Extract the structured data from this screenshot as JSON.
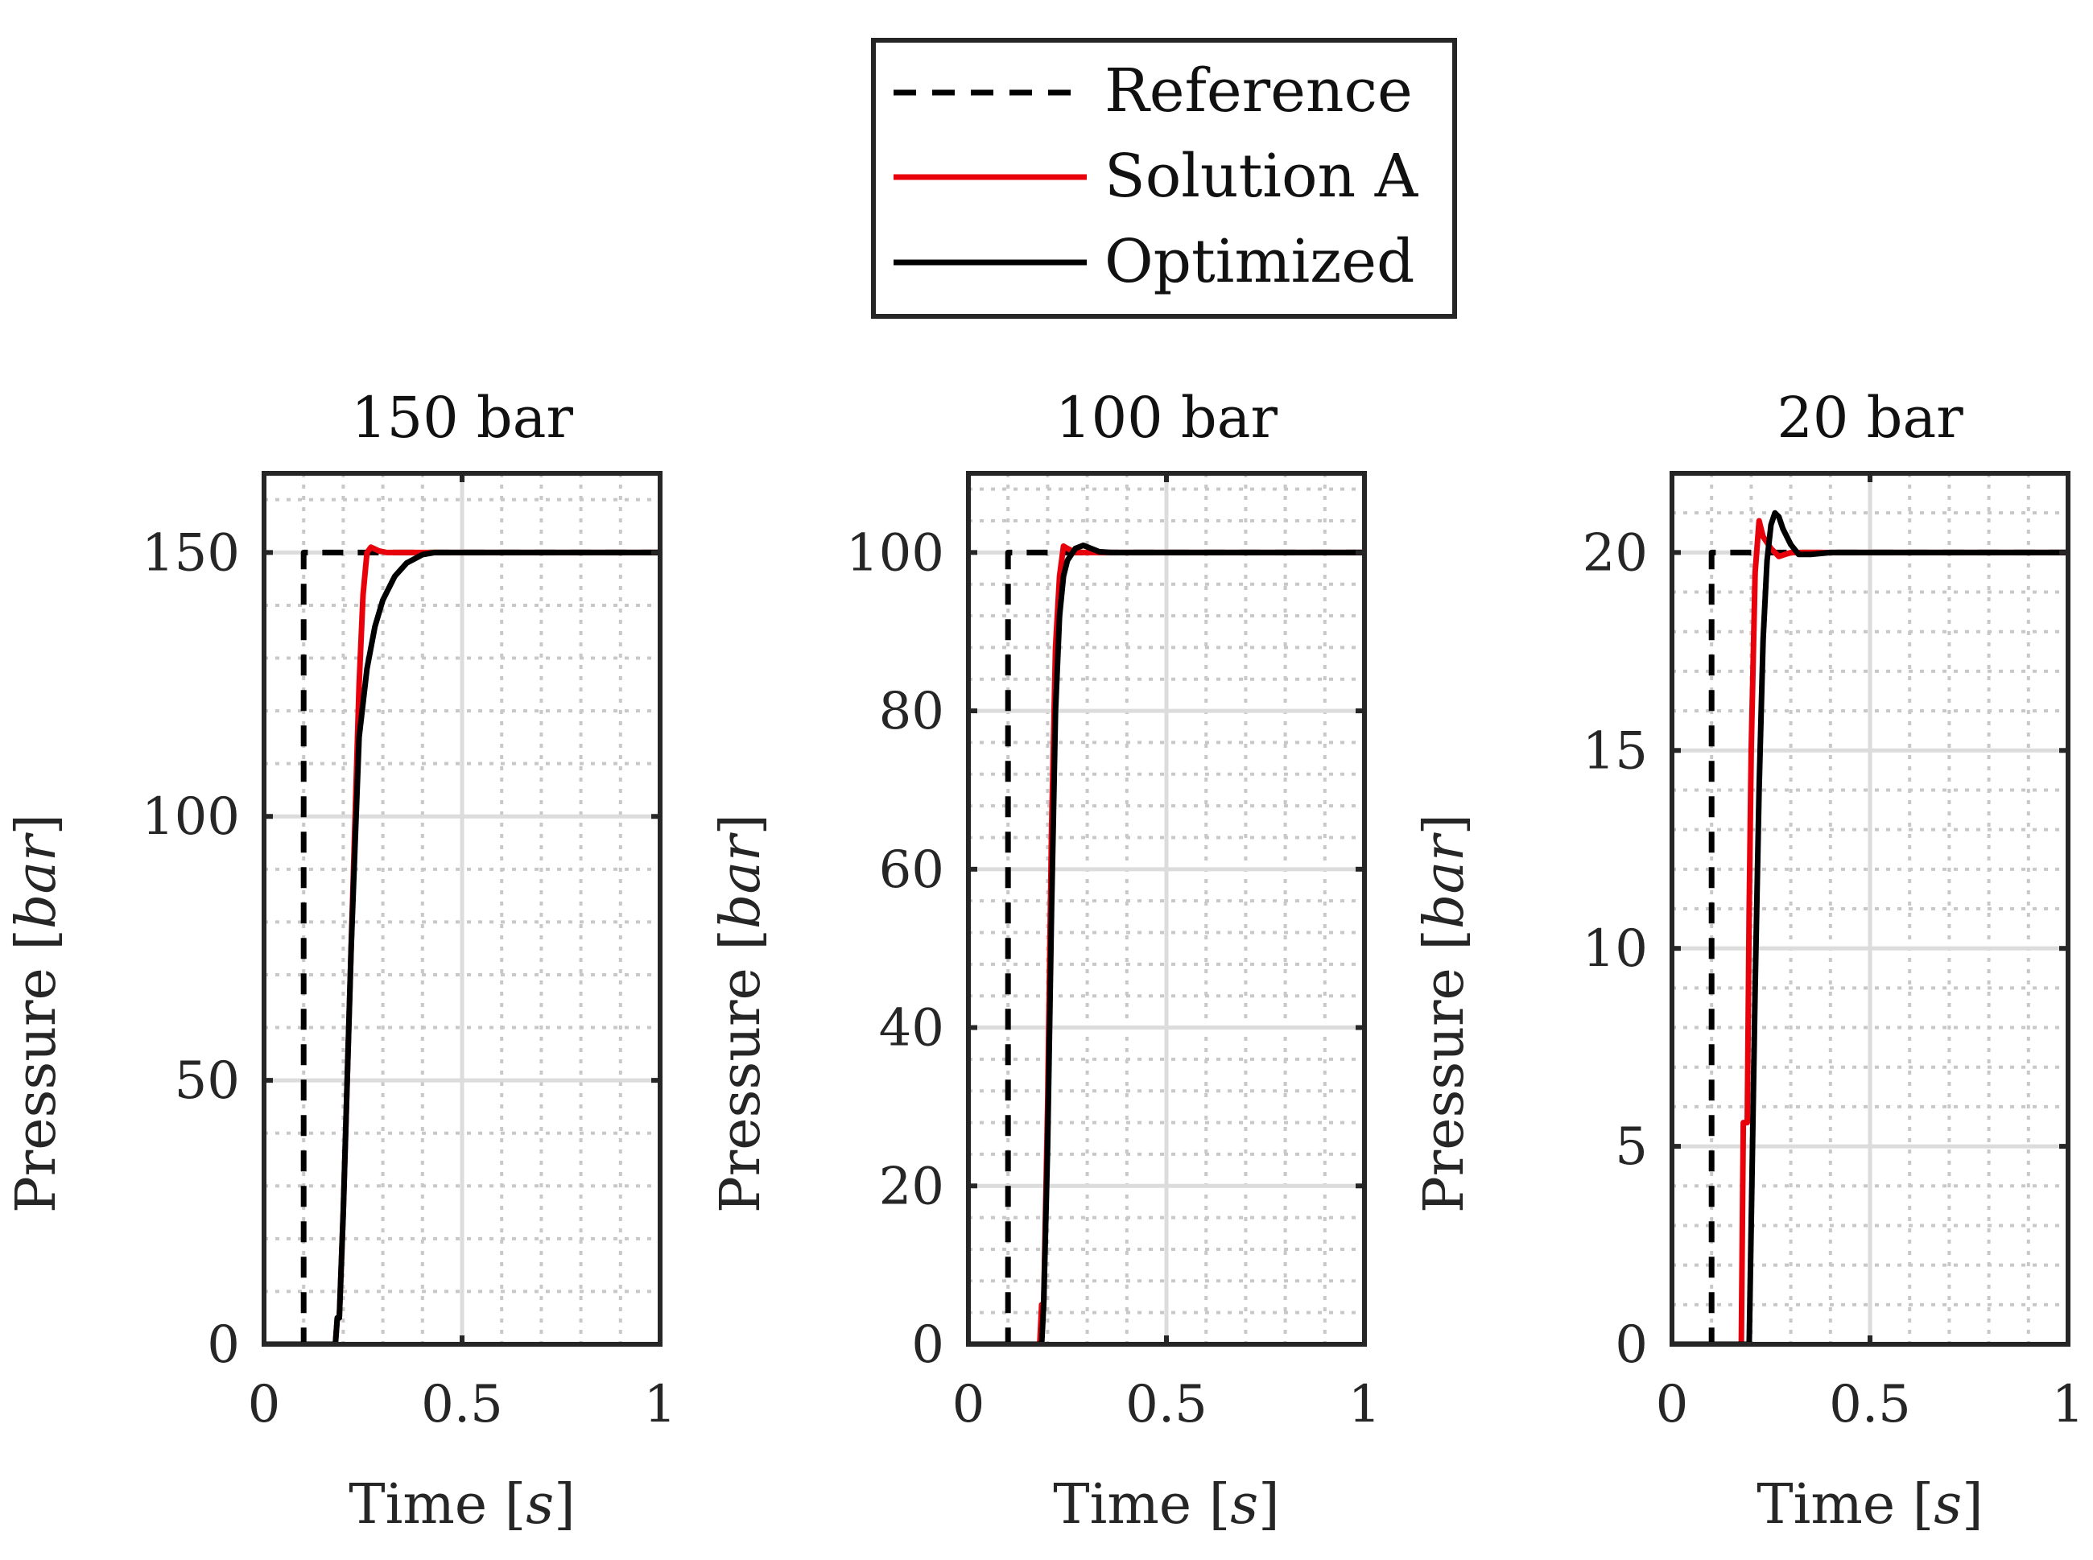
{
  "legend": {
    "entries": [
      {
        "label": "Reference",
        "color": "#000000",
        "style": "dashed"
      },
      {
        "label": "Solution A",
        "color": "#e8000b",
        "style": "solid"
      },
      {
        "label": "Optimized",
        "color": "#000000",
        "style": "solid"
      }
    ]
  },
  "chart_data": [
    {
      "type": "line",
      "title": "150 bar",
      "xlabel_text": "Time ",
      "xlabel_unit": "s",
      "ylabel_text": "Pressure ",
      "ylabel_unit": "bar",
      "xlim": [
        0,
        1
      ],
      "ylim": [
        0,
        165
      ],
      "xticks": [
        0,
        0.5,
        1
      ],
      "xtick_labels": [
        "0",
        "0.5",
        "1"
      ],
      "yticks": [
        0,
        50,
        100,
        150
      ],
      "ytick_labels": [
        "0",
        "50",
        "100",
        "150"
      ],
      "minor_xticks": [
        0.1,
        0.2,
        0.3,
        0.4,
        0.6,
        0.7,
        0.8,
        0.9
      ],
      "minor_yticks": [
        10,
        20,
        30,
        40,
        60,
        70,
        80,
        90,
        110,
        120,
        130,
        140,
        160
      ],
      "grid": true,
      "series": [
        {
          "name": "Reference",
          "x": [
            0,
            0.1,
            0.1,
            1
          ],
          "y": [
            0,
            0,
            150,
            150
          ]
        },
        {
          "name": "Solution A",
          "x": [
            0,
            0.18,
            0.185,
            0.19,
            0.2,
            0.22,
            0.24,
            0.25,
            0.26,
            0.27,
            0.29,
            0.31,
            0.35,
            1
          ],
          "y": [
            0,
            0,
            5,
            5,
            25,
            75,
            125,
            142,
            150,
            151,
            150.3,
            150,
            150,
            150
          ]
        },
        {
          "name": "Optimized",
          "x": [
            0,
            0.18,
            0.185,
            0.19,
            0.2,
            0.22,
            0.24,
            0.26,
            0.28,
            0.3,
            0.33,
            0.36,
            0.4,
            0.43,
            1
          ],
          "y": [
            0,
            0,
            5,
            5,
            25,
            75,
            115,
            128,
            136,
            141,
            145.5,
            148,
            149.6,
            150,
            150
          ]
        }
      ]
    },
    {
      "type": "line",
      "title": "100 bar",
      "xlabel_text": "Time ",
      "xlabel_unit": "s",
      "ylabel_text": "Pressure ",
      "ylabel_unit": "bar",
      "xlim": [
        0,
        1
      ],
      "ylim": [
        0,
        110
      ],
      "xticks": [
        0,
        0.5,
        1
      ],
      "xtick_labels": [
        "0",
        "0.5",
        "1"
      ],
      "yticks": [
        0,
        20,
        40,
        60,
        80,
        100
      ],
      "ytick_labels": [
        "0",
        "20",
        "40",
        "60",
        "80",
        "100"
      ],
      "minor_xticks": [
        0.1,
        0.2,
        0.3,
        0.4,
        0.6,
        0.7,
        0.8,
        0.9
      ],
      "minor_yticks": [
        4,
        8,
        12,
        16,
        24,
        28,
        32,
        36,
        44,
        48,
        52,
        56,
        64,
        68,
        72,
        76,
        84,
        88,
        92,
        96,
        104,
        108
      ],
      "grid": true,
      "series": [
        {
          "name": "Reference",
          "x": [
            0,
            0.1,
            0.1,
            1
          ],
          "y": [
            0,
            0,
            100,
            100
          ]
        },
        {
          "name": "Solution A",
          "x": [
            0,
            0.18,
            0.185,
            0.19,
            0.2,
            0.21,
            0.22,
            0.23,
            0.24,
            0.25,
            0.27,
            0.3,
            1
          ],
          "y": [
            0,
            0,
            5,
            5,
            30,
            65,
            88,
            97,
            100.8,
            100.5,
            100,
            100,
            100
          ]
        },
        {
          "name": "Optimized",
          "x": [
            0,
            0.185,
            0.19,
            0.2,
            0.21,
            0.22,
            0.23,
            0.24,
            0.25,
            0.27,
            0.29,
            0.31,
            0.33,
            0.36,
            1
          ],
          "y": [
            0,
            0,
            5,
            25,
            55,
            80,
            92,
            97,
            99,
            100.5,
            100.9,
            100.5,
            100.1,
            100,
            100
          ]
        }
      ]
    },
    {
      "type": "line",
      "title": "20 bar",
      "xlabel_text": "Time ",
      "xlabel_unit": "s",
      "ylabel_text": "Pressure ",
      "ylabel_unit": "bar",
      "xlim": [
        0,
        1
      ],
      "ylim": [
        0,
        22
      ],
      "xticks": [
        0,
        0.5,
        1
      ],
      "xtick_labels": [
        "0",
        "0.5",
        "1"
      ],
      "yticks": [
        0,
        5,
        10,
        15,
        20
      ],
      "ytick_labels": [
        "0",
        "5",
        "10",
        "15",
        "20"
      ],
      "minor_xticks": [
        0.1,
        0.2,
        0.3,
        0.4,
        0.6,
        0.7,
        0.8,
        0.9
      ],
      "minor_yticks": [
        1,
        2,
        3,
        4,
        6,
        7,
        8,
        9,
        11,
        12,
        13,
        14,
        16,
        17,
        18,
        19,
        21
      ],
      "grid": true,
      "series": [
        {
          "name": "Reference",
          "x": [
            0,
            0.1,
            0.1,
            1
          ],
          "y": [
            0,
            0,
            20,
            20
          ]
        },
        {
          "name": "Solution A",
          "x": [
            0,
            0.175,
            0.18,
            0.19,
            0.195,
            0.2,
            0.21,
            0.22,
            0.23,
            0.25,
            0.27,
            0.3,
            0.33,
            1
          ],
          "y": [
            0,
            0,
            5.6,
            5.6,
            11,
            15,
            19.5,
            20.8,
            20.4,
            20.1,
            19.9,
            20,
            20,
            20
          ]
        },
        {
          "name": "Optimized",
          "x": [
            0,
            0.195,
            0.2,
            0.21,
            0.22,
            0.23,
            0.24,
            0.25,
            0.26,
            0.27,
            0.28,
            0.3,
            0.32,
            0.35,
            0.4,
            1
          ],
          "y": [
            0,
            0,
            3,
            9,
            14,
            17.8,
            19.8,
            20.7,
            21,
            20.9,
            20.6,
            20.2,
            19.95,
            19.95,
            20,
            20
          ]
        }
      ]
    }
  ]
}
